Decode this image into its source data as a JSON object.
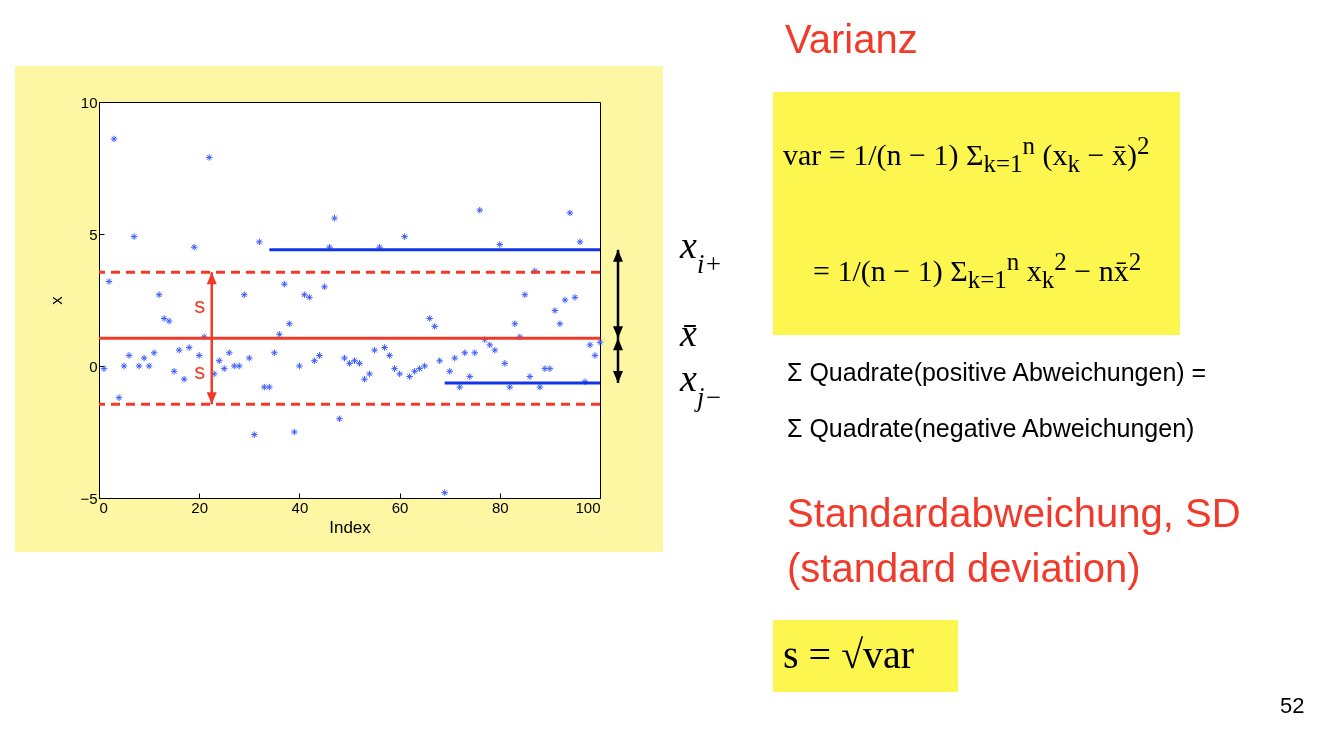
{
  "chart_data": {
    "type": "scatter",
    "xlabel": "Index",
    "ylabel": "x",
    "xlim": [
      0,
      100
    ],
    "ylim": [
      -5,
      10
    ],
    "xticks": [
      0,
      20,
      40,
      60,
      80,
      100
    ],
    "yticks": [
      -5,
      0,
      5,
      10
    ],
    "marker": "cross",
    "x": [
      1,
      2,
      3,
      4,
      5,
      6,
      7,
      8,
      9,
      10,
      11,
      12,
      13,
      14,
      15,
      16,
      17,
      18,
      19,
      20,
      21,
      22,
      23,
      24,
      25,
      26,
      27,
      28,
      29,
      30,
      31,
      32,
      33,
      34,
      35,
      36,
      37,
      38,
      39,
      40,
      41,
      42,
      43,
      44,
      45,
      46,
      47,
      48,
      49,
      50,
      51,
      52,
      53,
      54,
      55,
      56,
      57,
      58,
      59,
      60,
      61,
      62,
      63,
      64,
      65,
      66,
      67,
      68,
      69,
      70,
      71,
      72,
      73,
      74,
      75,
      76,
      77,
      78,
      79,
      80,
      81,
      82,
      83,
      84,
      85,
      86,
      87,
      88,
      89,
      90,
      91,
      92,
      93,
      94,
      95,
      96,
      97,
      98,
      99,
      100
    ],
    "series": [
      {
        "color": "#3d5cff",
        "values": [
          -0.1,
          3.2,
          8.6,
          -1.2,
          0.0,
          0.4,
          4.9,
          0.0,
          0.3,
          0.0,
          0.5,
          2.7,
          1.8,
          1.7,
          -0.2,
          0.6,
          -0.5,
          0.7,
          4.5,
          0.4,
          1.1,
          7.9,
          -0.3,
          0.2,
          -0.1,
          0.5,
          0.0,
          0.0,
          2.7,
          0.3,
          -2.6,
          4.7,
          -0.8,
          -0.8,
          0.5,
          1.2,
          3.1,
          1.6,
          -2.5,
          0.0,
          2.7,
          2.6,
          0.2,
          0.4,
          3.0,
          4.5,
          5.6,
          -2.0,
          0.3,
          0.1,
          0.2,
          0.1,
          -0.5,
          -0.3,
          0.6,
          4.5,
          0.7,
          0.4,
          -0.1,
          -0.3,
          4.9,
          -0.4,
          -0.2,
          -0.1,
          0.0,
          1.8,
          1.5,
          0.2,
          -4.8,
          -0.2,
          0.3,
          -0.8,
          0.5,
          -0.4,
          0.5,
          5.9,
          1.0,
          0.8,
          0.6,
          4.6,
          0.1,
          -0.8,
          1.6,
          1.1,
          2.7,
          -0.4,
          3.6,
          -0.8,
          -0.1,
          -0.1,
          2.1,
          1.6,
          2.5,
          5.8,
          2.6,
          4.7,
          -0.6,
          0.8,
          0.4,
          0.9
        ]
      },
      {
        "type": "line",
        "name": "x$_{i+}$",
        "marker": "none",
        "color": "#1034e6",
        "x": [
          34,
          100
        ],
        "values": [
          4.4,
          4.4
        ]
      },
      {
        "type": "line",
        "name": "x$_{j−}$",
        "marker": "none",
        "color": "#1034e6",
        "x": [
          69,
          100
        ],
        "values": [
          -0.64,
          -0.64
        ]
      }
    ],
    "ref_lines": [
      {
        "axis": "y",
        "value": 1.05,
        "label": "x̄",
        "color": "#f23a2a",
        "line_style": "solid"
      },
      {
        "axis": "y",
        "value": 3.55,
        "color": "#f23a2a",
        "line_style": "dashed"
      },
      {
        "axis": "y",
        "value": -1.45,
        "color": "#f23a2a",
        "line_style": "dashed"
      }
    ],
    "annotations": [
      "Varianz",
      "var = 1/(n − 1) Σ$_{k=1}$$^{n}$ (x$_{k}$ − x̄)$^{2}$",
      "= 1/(n − 1) Σ$_{k=1}$$^{n}$ x$_{k}$$^{2}$ − nx̄$^{2}$",
      "Σ Quadrate(positive Abweichungen) =",
      "Σ Quadrate(negative Abweichungen)",
      "Standardabweichung, SD",
      "(standard deviation)",
      "s = √var",
      "52",
      {
        "text": "s",
        "x": 22.5,
        "y": 3.55
      },
      {
        "text": "s",
        "x": 22.5,
        "y": -1.45
      }
    ]
  }
}
